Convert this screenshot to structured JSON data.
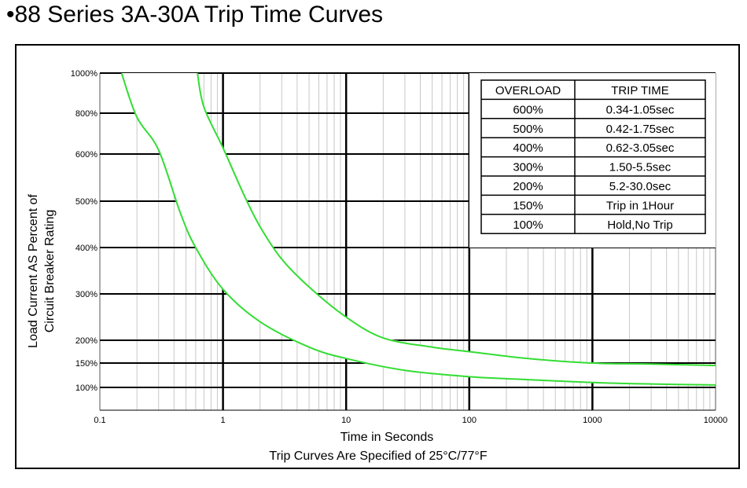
{
  "title": "•88 Series 3A-30A Trip Time Curves",
  "chart_data": {
    "type": "line",
    "xscale": "log",
    "xlim": [
      0.1,
      10000
    ],
    "xticks": [
      {
        "value": 0.1,
        "label": "0.1"
      },
      {
        "value": 1,
        "label": "1"
      },
      {
        "value": 10,
        "label": "10"
      },
      {
        "value": 100,
        "label": "100"
      },
      {
        "value": 1000,
        "label": "1000"
      },
      {
        "value": 10000,
        "label": "10000"
      }
    ],
    "yticks": [
      {
        "value": 100,
        "label": "100%"
      },
      {
        "value": 150,
        "label": "150%"
      },
      {
        "value": 200,
        "label": "200%"
      },
      {
        "value": 300,
        "label": "300%"
      },
      {
        "value": 400,
        "label": "400%"
      },
      {
        "value": 500,
        "label": "500%"
      },
      {
        "value": 600,
        "label": "600%"
      },
      {
        "value": 800,
        "label": "800%"
      },
      {
        "value": 1000,
        "label": "1000%"
      }
    ],
    "xlabel": "Time in Seconds",
    "xlabel2": "Trip Curves Are Specified of 25°C/77°F",
    "ylabel": "Load Current AS Percent of",
    "ylabel2": "Circuit Breaker Rating",
    "grid": true,
    "curve_color": "#33dd33",
    "series": [
      {
        "x": [
          0.15,
          0.2,
          0.3,
          0.45,
          0.6,
          1,
          2,
          5,
          10,
          30,
          100,
          300,
          1000,
          3000,
          10000
        ],
        "y": [
          1000,
          780,
          620,
          475,
          400,
          310,
          240,
          185,
          160,
          135,
          122,
          116,
          110,
          107,
          105
        ]
      },
      {
        "x": [
          0.62,
          0.7,
          1,
          1.5,
          2,
          3,
          5,
          10,
          20,
          50,
          100,
          300,
          1000,
          3000,
          10000
        ],
        "y": [
          1000,
          830,
          630,
          510,
          445,
          375,
          315,
          250,
          205,
          185,
          175,
          160,
          150,
          148,
          145
        ]
      }
    ],
    "table": {
      "headers": [
        "OVERLOAD",
        "TRIP TIME"
      ],
      "rows": [
        [
          "600%",
          "0.34-1.05sec"
        ],
        [
          "500%",
          "0.42-1.75sec"
        ],
        [
          "400%",
          "0.62-3.05sec"
        ],
        [
          "300%",
          "1.50-5.5sec"
        ],
        [
          "200%",
          "5.2-30.0sec"
        ],
        [
          "150%",
          "Trip in 1Hour"
        ],
        [
          "100%",
          "Hold,No Trip"
        ]
      ]
    }
  }
}
